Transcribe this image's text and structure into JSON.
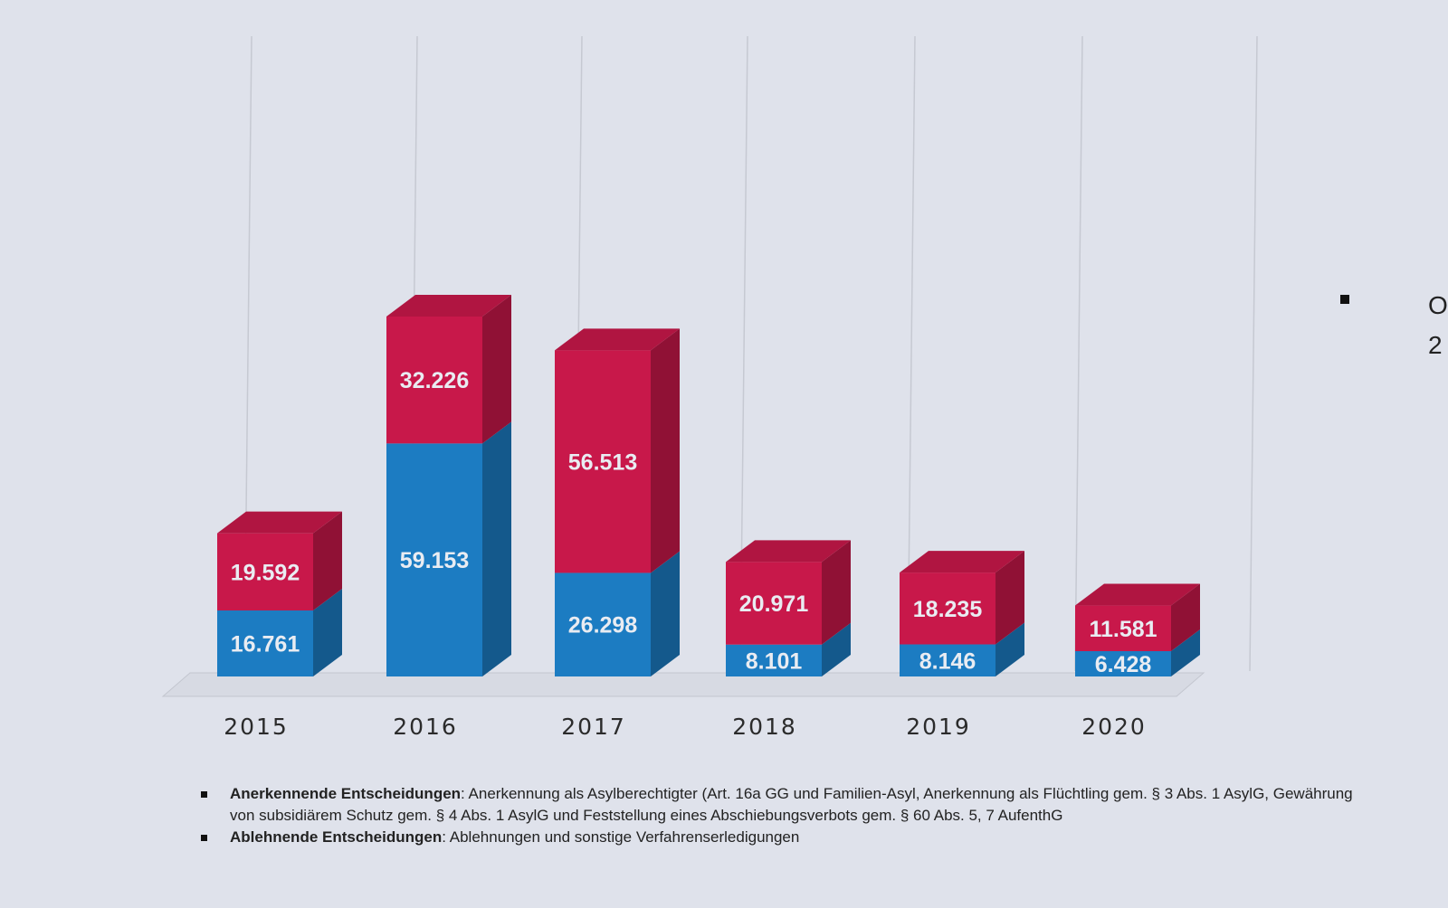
{
  "chart_data": {
    "type": "bar",
    "stacked": true,
    "style": "3d",
    "categories": [
      "2015",
      "2016",
      "2017",
      "2018",
      "2019",
      "2020"
    ],
    "series": [
      {
        "key": "anerkennend",
        "values": [
          16761,
          59153,
          26298,
          8101,
          8146,
          6428
        ],
        "labels": [
          "16.761",
          "59.153",
          "26.298",
          "8.101",
          "8.146",
          "6.428"
        ],
        "color": "#1c7cc2"
      },
      {
        "key": "ablehnend",
        "values": [
          19592,
          32226,
          56513,
          20971,
          18235,
          11581
        ],
        "labels": [
          "19.592",
          "32.226",
          "56.513",
          "20.971",
          "18.235",
          "11.581"
        ],
        "color": "#c8184a"
      }
    ],
    "grid": "vertical",
    "legend": "bottom"
  },
  "legend": {
    "items": [
      {
        "term": "Anerkennende Entscheidungen",
        "text": ": Anerkennung als Asylberechtigter (Art. 16a GG und Familien-Asyl, Anerkennung als Flüchtling gem. § 3 Abs. 1 AsylG, Gewährung von subsidiärem Schutz gem. § 4 Abs. 1 AsylG und Feststellung eines Abschiebungsverbots gem. § 60 Abs. 5, 7 AufenthG"
      },
      {
        "term": "Ablehnende Entscheidungen",
        "text": ": Ablehnungen und sonstige Verfahrenserledigungen"
      }
    ]
  },
  "side_text": {
    "line1": "O",
    "line2": "2"
  }
}
